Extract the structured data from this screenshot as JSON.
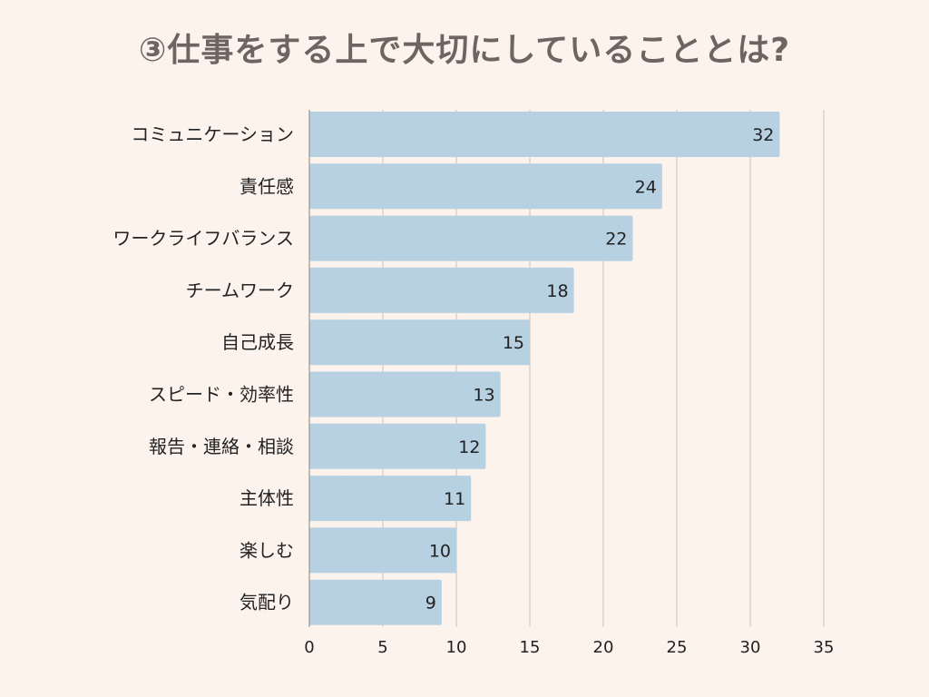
{
  "chart_data": {
    "type": "bar",
    "orientation": "horizontal",
    "title": "③仕事をする上で大切にしていることとは?",
    "xlabel": "",
    "ylabel": "",
    "categories": [
      "コミュニケーション",
      "責任感",
      "ワークライフバランス",
      "チームワーク",
      "自己成長",
      "スピード・効率性",
      "報告・連絡・相談",
      "主体性",
      "楽しむ",
      "気配り"
    ],
    "values": [
      32,
      24,
      22,
      18,
      15,
      13,
      12,
      11,
      10,
      9
    ],
    "xlim": [
      0,
      35
    ],
    "xticks": [
      0,
      5,
      10,
      15,
      20,
      25,
      30,
      35
    ],
    "grid": true,
    "data_labels": true,
    "colors": {
      "bar": "#B7D0E2",
      "background": "#FBF3EC",
      "title": "#6E6461",
      "text": "#222222",
      "grid": "#C8C2BE",
      "axis": "#9A9490"
    }
  }
}
